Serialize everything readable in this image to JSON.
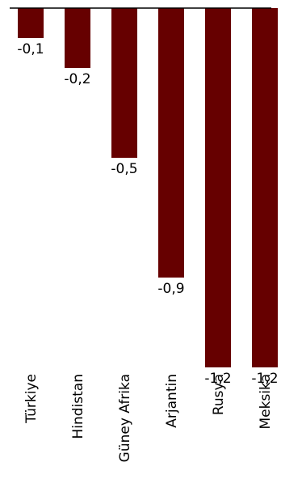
{
  "chart_data": {
    "type": "bar",
    "categories": [
      "Türkiye",
      "Hindistan",
      "Güney Afrika",
      "Arjantin",
      "Rusya",
      "Meksika"
    ],
    "value_labels": [
      "-0,1",
      "-0,2",
      "-0,5",
      "-0,9",
      "-1,2",
      "-1,2"
    ],
    "values": [
      -0.1,
      -0.2,
      -0.5,
      -0.9,
      -1.2,
      -1.2
    ],
    "ylim": [
      -1.2,
      0
    ],
    "bar_color": "#660000",
    "axis_color": "#000000",
    "grid": false,
    "legend": "none",
    "title": "",
    "xlabel": "",
    "ylabel": ""
  }
}
